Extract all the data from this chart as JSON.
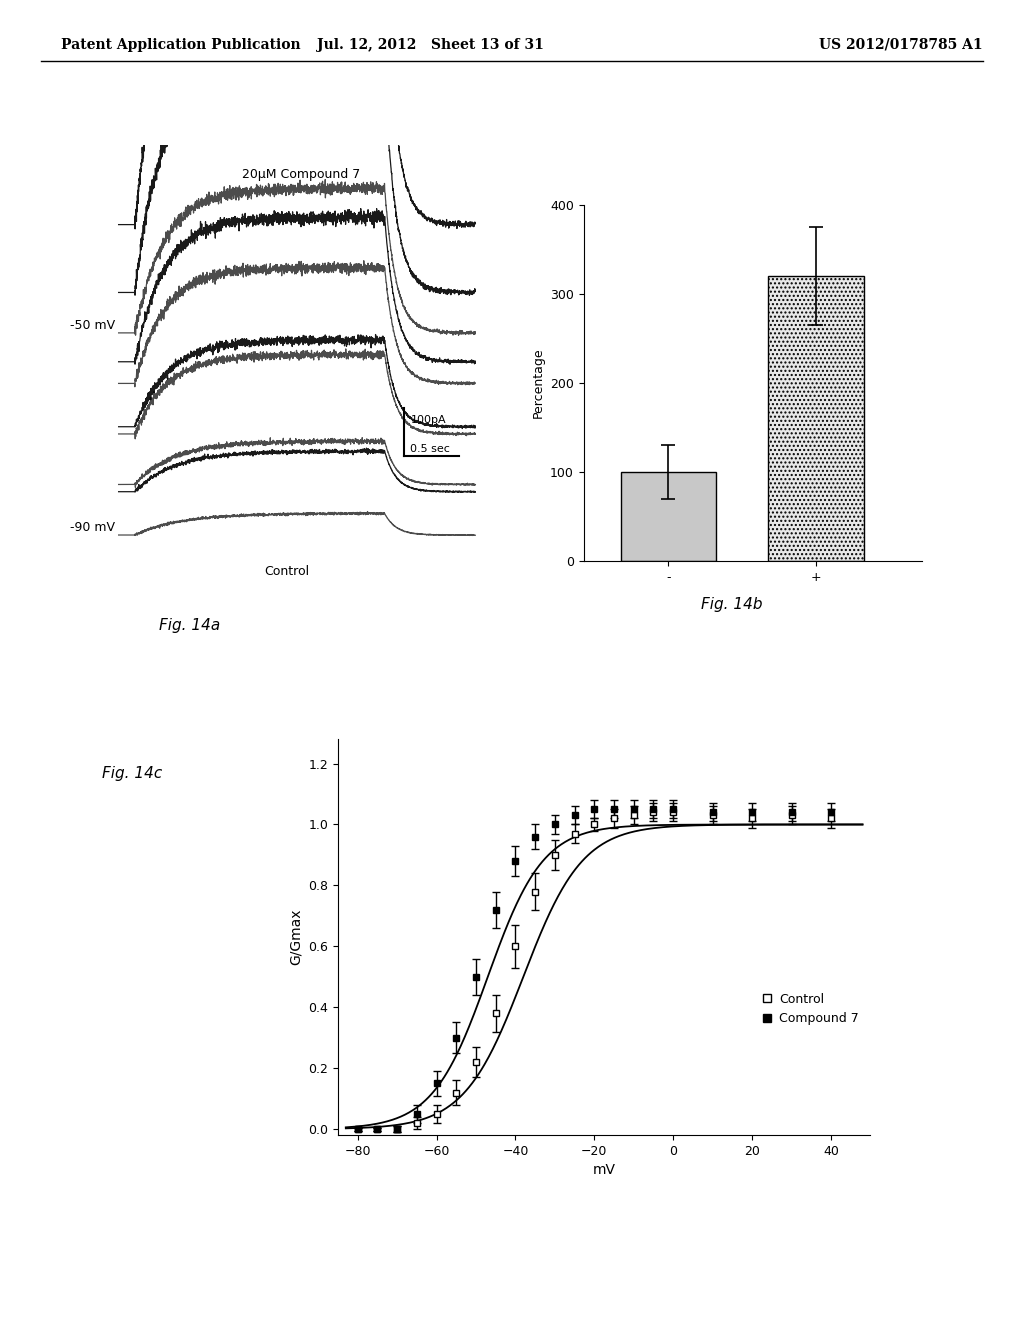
{
  "header_left": "Patent Application Publication",
  "header_mid": "Jul. 12, 2012   Sheet 13 of 31",
  "header_right": "US 2012/0178785 A1",
  "fig14b": {
    "categories": [
      "-",
      "+"
    ],
    "values": [
      100,
      320
    ],
    "errors": [
      30,
      55
    ],
    "ylabel": "Percentage",
    "ylim": [
      0,
      400
    ],
    "yticks": [
      0,
      100,
      200,
      300,
      400
    ],
    "bar_color_1": "#c8c8c8",
    "bar_color_2": "#e8e8e8",
    "label": "Fig. 14b"
  },
  "fig14c": {
    "ylabel": "G/Gmax",
    "xlabel": "mV",
    "ylim": [
      -0.02,
      1.28
    ],
    "xlim": [
      -85,
      50
    ],
    "yticks": [
      0.0,
      0.2,
      0.4,
      0.6,
      0.8,
      1.0,
      1.2
    ],
    "xticks": [
      -80,
      -60,
      -40,
      -20,
      0,
      20,
      40
    ],
    "label": "Fig. 14c",
    "control_x": [
      -80,
      -75,
      -70,
      -65,
      -60,
      -55,
      -50,
      -45,
      -40,
      -35,
      -30,
      -25,
      -20,
      -15,
      -10,
      -5,
      0,
      10,
      20,
      30,
      40
    ],
    "control_y": [
      0.0,
      0.0,
      0.0,
      0.02,
      0.05,
      0.12,
      0.22,
      0.38,
      0.6,
      0.78,
      0.9,
      0.97,
      1.0,
      1.02,
      1.03,
      1.04,
      1.04,
      1.03,
      1.02,
      1.03,
      1.02
    ],
    "control_err": [
      0.005,
      0.005,
      0.01,
      0.02,
      0.03,
      0.04,
      0.05,
      0.06,
      0.07,
      0.06,
      0.05,
      0.03,
      0.02,
      0.03,
      0.03,
      0.03,
      0.03,
      0.03,
      0.03,
      0.03,
      0.03
    ],
    "compound_x": [
      -80,
      -75,
      -70,
      -65,
      -60,
      -55,
      -50,
      -45,
      -40,
      -35,
      -30,
      -25,
      -20,
      -15,
      -10,
      -5,
      0,
      10,
      20,
      30,
      40
    ],
    "compound_y": [
      0.0,
      0.0,
      0.0,
      0.05,
      0.15,
      0.3,
      0.5,
      0.72,
      0.88,
      0.96,
      1.0,
      1.03,
      1.05,
      1.05,
      1.05,
      1.05,
      1.05,
      1.04,
      1.04,
      1.04,
      1.04
    ],
    "compound_err": [
      0.005,
      0.005,
      0.01,
      0.03,
      0.04,
      0.05,
      0.06,
      0.06,
      0.05,
      0.04,
      0.03,
      0.03,
      0.03,
      0.03,
      0.03,
      0.03,
      0.03,
      0.03,
      0.03,
      0.03,
      0.03
    ],
    "legend_control": "Control",
    "legend_compound": "Compound 7"
  },
  "background_color": "#ffffff",
  "text_color": "#000000"
}
